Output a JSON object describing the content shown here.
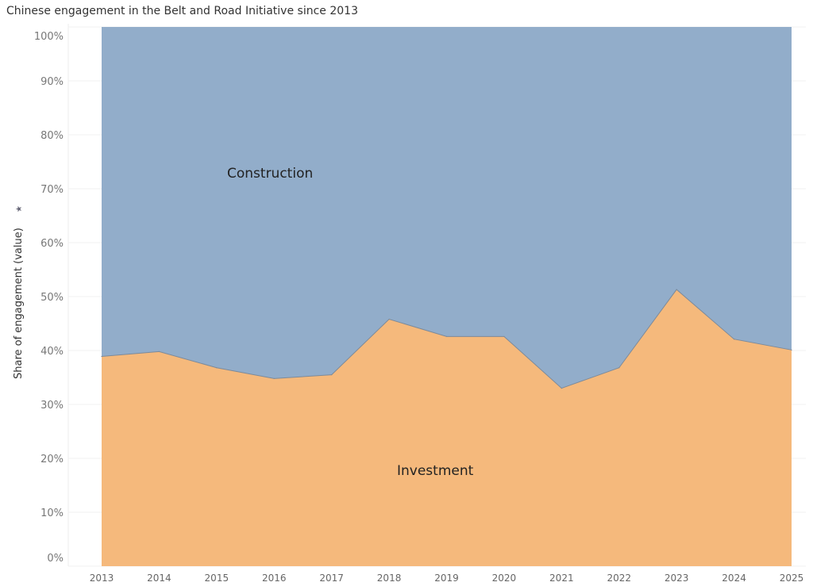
{
  "chart_data": {
    "type": "area",
    "stacked": "percent",
    "title": "Chinese engagement in the Belt and Road Initiative since 2013",
    "ylabel": "Share of engagement (value)",
    "xlabel": "",
    "ylim": [
      0,
      100
    ],
    "y_ticks": [
      "0%",
      "10%",
      "20%",
      "30%",
      "40%",
      "50%",
      "60%",
      "70%",
      "80%",
      "90%",
      "100%"
    ],
    "categories": [
      "2013",
      "2014",
      "2015",
      "2016",
      "2017",
      "2018",
      "2019",
      "2020",
      "2021",
      "2022",
      "2023",
      "2024",
      "2025"
    ],
    "series": [
      {
        "name": "Investment",
        "color": "#f5b97c",
        "values": [
          38.9,
          39.8,
          36.8,
          34.8,
          35.5,
          45.8,
          42.6,
          42.6,
          33.0,
          36.8,
          51.3,
          42.1,
          40.1
        ]
      },
      {
        "name": "Construction",
        "color": "#92adca",
        "values": [
          61.1,
          60.2,
          63.2,
          65.2,
          64.5,
          54.2,
          57.4,
          57.4,
          67.0,
          63.2,
          48.7,
          57.9,
          59.9
        ]
      }
    ],
    "grid": true,
    "legend": "inline labels"
  }
}
